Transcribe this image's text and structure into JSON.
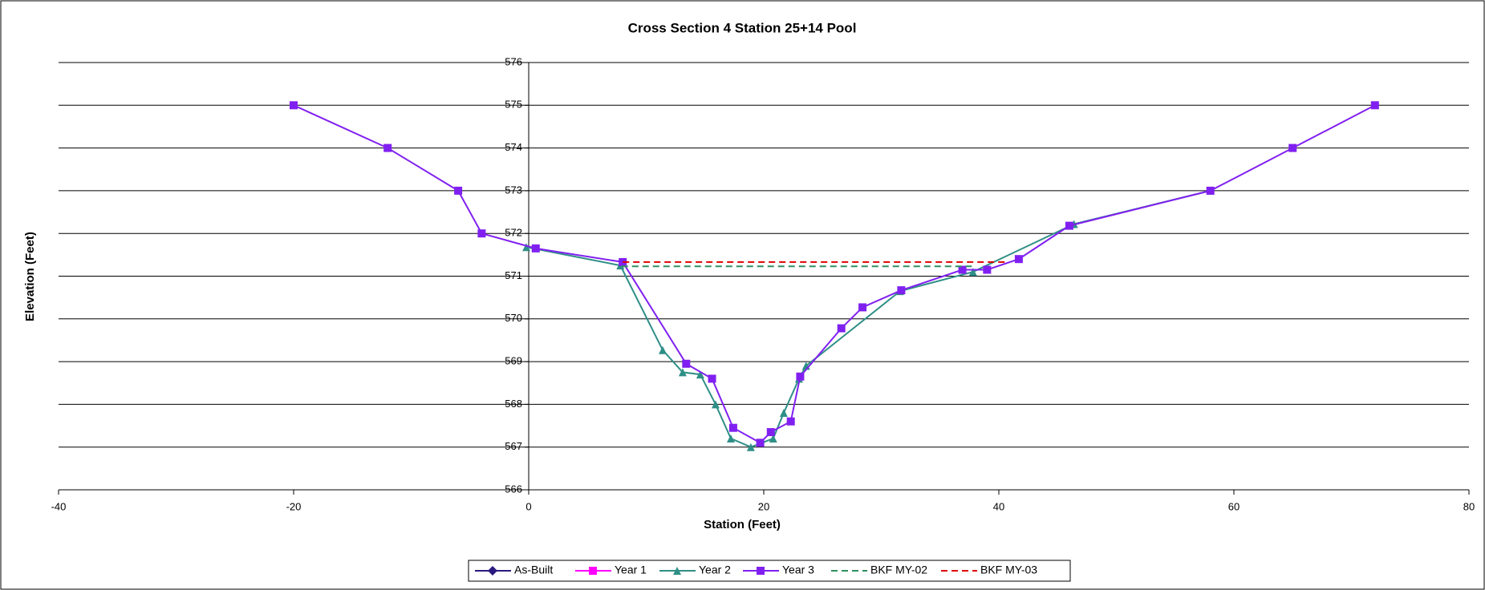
{
  "chart_data": {
    "type": "line",
    "title": "Cross Section 4 Station 25+14 Pool",
    "x_label": "Station (Feet)",
    "y_label": "Elevation (Feet)",
    "xlim": [
      -40,
      80
    ],
    "xticks": [
      -40,
      -20,
      0,
      20,
      40,
      60,
      80
    ],
    "ylim": [
      566,
      576
    ],
    "yticks": [
      566,
      567,
      568,
      569,
      570,
      571,
      572,
      573,
      574,
      575,
      576
    ],
    "grid": true,
    "legend": "bottom",
    "series": [
      {
        "name": "As-Built",
        "color": "#2a1a80",
        "marker": "diamond",
        "dash": "solid",
        "x": [],
        "values": []
      },
      {
        "name": "Year 1",
        "color": "#ff00ff",
        "marker": "square",
        "dash": "solid",
        "x": [],
        "values": []
      },
      {
        "name": "Year 2",
        "color": "#2f8f87",
        "marker": "triangle",
        "dash": "solid",
        "x": [
          -0.2,
          7.8,
          11.4,
          13.1,
          14.6,
          15.9,
          17.2,
          18.9,
          20.8,
          21.7,
          23.0,
          23.6,
          31.6,
          37.8,
          46.4,
          58
        ],
        "values": [
          571.68,
          571.25,
          569.27,
          568.75,
          568.7,
          568.0,
          567.2,
          567.0,
          567.2,
          567.8,
          568.6,
          568.9,
          570.65,
          571.1,
          572.22,
          573
        ]
      },
      {
        "name": "Year 3",
        "color": "#8020f0",
        "marker": "square",
        "dash": "solid",
        "x": [
          -20,
          -12,
          -6,
          -4,
          0.6,
          8,
          13.4,
          15.6,
          17.4,
          19.7,
          20.6,
          22.3,
          23.1,
          26.6,
          28.4,
          31.7,
          36.9,
          39.0,
          41.7,
          46.0,
          58,
          65,
          72
        ],
        "values": [
          575,
          574,
          573,
          572,
          571.65,
          571.33,
          568.95,
          568.6,
          567.45,
          567.1,
          567.35,
          567.6,
          568.65,
          569.78,
          570.27,
          570.67,
          571.15,
          571.15,
          571.4,
          572.18,
          573,
          574,
          575
        ]
      },
      {
        "name": "BKF MY-02",
        "color": "#2f8f60",
        "marker": "none",
        "dash": "dashed",
        "x": [
          7.9,
          37.7
        ],
        "values": [
          571.23,
          571.23
        ]
      },
      {
        "name": "BKF MY-03",
        "color": "#e00000",
        "marker": "none",
        "dash": "dashed",
        "x": [
          8,
          40.8
        ],
        "values": [
          571.33,
          571.33
        ]
      }
    ]
  }
}
